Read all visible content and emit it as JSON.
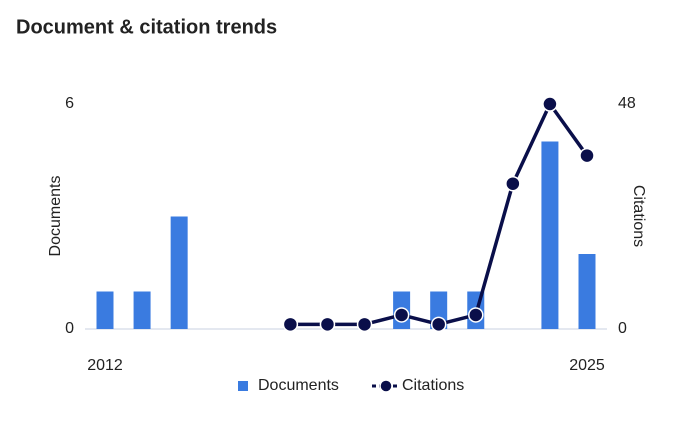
{
  "chart_data": {
    "type": "bar-line",
    "title": "Document & citation trends",
    "categories": [
      "2012",
      null,
      null,
      null,
      null,
      null,
      null,
      null,
      null,
      null,
      null,
      null,
      null,
      "2025"
    ],
    "y_label": "Documents",
    "y2_label": "Citations",
    "ylim": [
      0,
      6
    ],
    "yticks": [
      0,
      6
    ],
    "y2lim": [
      0,
      48
    ],
    "y2ticks": [
      0,
      48
    ],
    "series": [
      {
        "name": "Documents",
        "type": "bar",
        "color": "#3a7be0",
        "values": [
          1,
          1,
          3,
          0,
          0,
          0,
          0,
          0,
          1,
          1,
          1,
          0,
          5,
          2
        ]
      },
      {
        "name": "Citations",
        "type": "line",
        "axis": "y2",
        "color": "#0a0f4a",
        "values": [
          null,
          null,
          null,
          null,
          null,
          1,
          1,
          1,
          3,
          1,
          3,
          31,
          48,
          37
        ]
      }
    ]
  }
}
